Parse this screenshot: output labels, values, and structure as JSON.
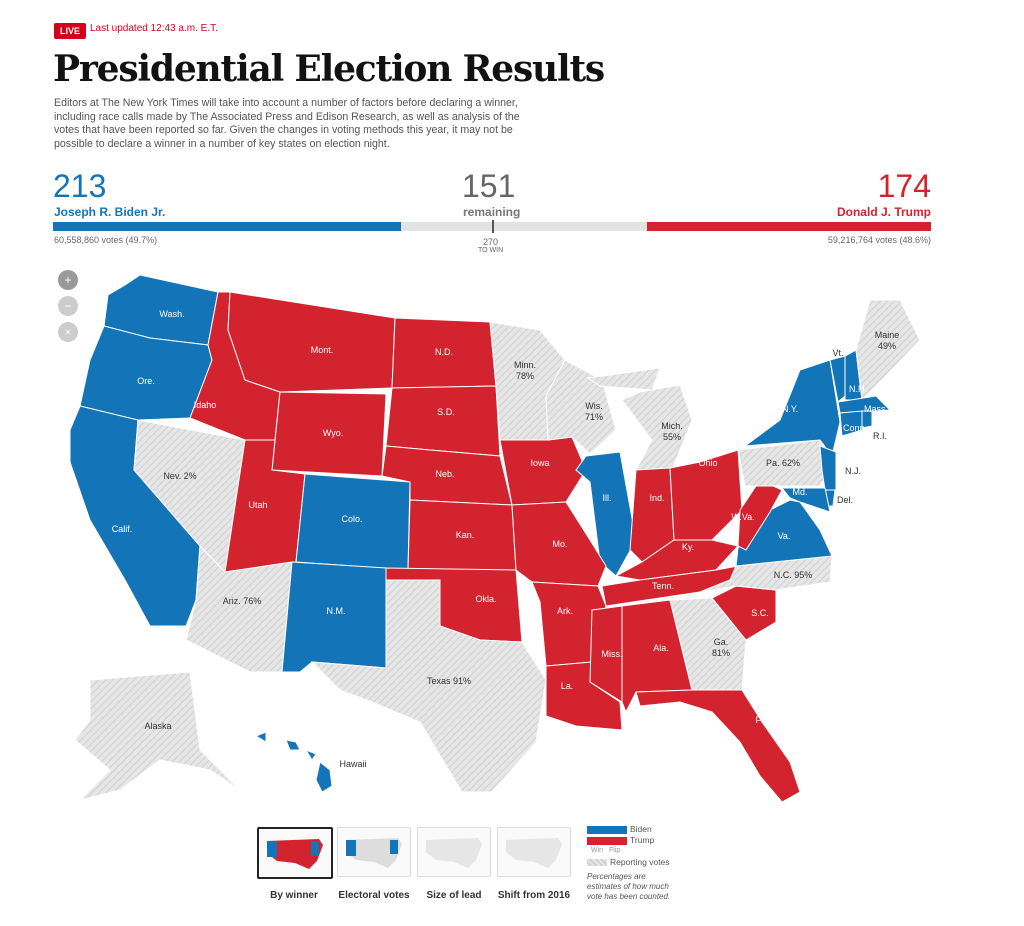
{
  "header": {
    "live_badge": "LIVE",
    "updated": "Last updated 12:43 a.m. E.T.",
    "title": "Presidential Election Results",
    "intro": "Editors at The New York Times will take into account a number of factors before declaring a winner, including race calls made by The Associated Press and Edison Research, as well as analysis of the votes that have been reported so far. Given the changes in voting methods this year, it may not be possible to declare a winner in a number of key states on election night."
  },
  "tally": {
    "biden": {
      "electoral": "213",
      "name": "Joseph R. Biden Jr.",
      "votes": "60,558,860 votes (49.7%)",
      "ev_value": 213
    },
    "remaining": {
      "count": "151",
      "label": "remaining",
      "ev_value": 151
    },
    "trump": {
      "electoral": "174",
      "name": "Donald J. Trump",
      "votes": "59,216,764 votes (48.6%)",
      "ev_value": 174
    },
    "to_win": {
      "number": "270",
      "label": "TO WIN"
    }
  },
  "colors": {
    "biden": "#1375b7",
    "trump": "#d2232f",
    "reporting": "#e3e3e3"
  },
  "zoom_controls": [
    "zoom-in-icon",
    "zoom-out-icon",
    "reset-icon"
  ],
  "states": [
    {
      "id": "wa",
      "label": "Wash.",
      "status": "biden"
    },
    {
      "id": "or",
      "label": "Ore.",
      "status": "biden"
    },
    {
      "id": "ca",
      "label": "Calif.",
      "status": "biden"
    },
    {
      "id": "nv",
      "label": "Nev.",
      "pct": "2%",
      "status": "reporting"
    },
    {
      "id": "id",
      "label": "Idaho",
      "status": "trump"
    },
    {
      "id": "mt",
      "label": "Mont.",
      "status": "trump"
    },
    {
      "id": "wy",
      "label": "Wyo.",
      "status": "trump"
    },
    {
      "id": "ut",
      "label": "Utah",
      "status": "trump"
    },
    {
      "id": "co",
      "label": "Colo.",
      "status": "biden"
    },
    {
      "id": "az",
      "label": "Ariz.",
      "pct": "76%",
      "status": "reporting"
    },
    {
      "id": "nm",
      "label": "N.M.",
      "status": "biden"
    },
    {
      "id": "nd",
      "label": "N.D.",
      "status": "trump"
    },
    {
      "id": "sd",
      "label": "S.D.",
      "status": "trump"
    },
    {
      "id": "ne",
      "label": "Neb.",
      "status": "trump"
    },
    {
      "id": "ks",
      "label": "Kan.",
      "status": "trump"
    },
    {
      "id": "ok",
      "label": "Okla.",
      "status": "trump"
    },
    {
      "id": "tx",
      "label": "Texas",
      "pct": "91%",
      "status": "reporting"
    },
    {
      "id": "mn",
      "label": "Minn.",
      "pct": "78%",
      "status": "reporting"
    },
    {
      "id": "ia",
      "label": "Iowa",
      "status": "trump"
    },
    {
      "id": "wi",
      "label": "Wis.",
      "pct": "71%",
      "status": "reporting"
    },
    {
      "id": "il",
      "label": "Ill.",
      "status": "biden"
    },
    {
      "id": "mo",
      "label": "Mo.",
      "status": "trump"
    },
    {
      "id": "mi",
      "label": "Mich.",
      "pct": "55%",
      "status": "reporting"
    },
    {
      "id": "in",
      "label": "Ind.",
      "status": "trump"
    },
    {
      "id": "oh",
      "label": "Ohio",
      "status": "trump"
    },
    {
      "id": "ky",
      "label": "Ky.",
      "status": "trump"
    },
    {
      "id": "tn",
      "label": "Tenn.",
      "status": "trump"
    },
    {
      "id": "ar",
      "label": "Ark.",
      "status": "trump"
    },
    {
      "id": "la",
      "label": "La.",
      "status": "trump"
    },
    {
      "id": "ms",
      "label": "Miss.",
      "status": "trump"
    },
    {
      "id": "al",
      "label": "Ala.",
      "status": "trump"
    },
    {
      "id": "ga",
      "label": "Ga.",
      "pct": "81%",
      "status": "reporting"
    },
    {
      "id": "fl",
      "label": "Fla.",
      "status": "trump"
    },
    {
      "id": "sc",
      "label": "S.C.",
      "status": "trump"
    },
    {
      "id": "nc",
      "label": "N.C.",
      "pct": "95%",
      "status": "reporting"
    },
    {
      "id": "va",
      "label": "Va.",
      "status": "biden"
    },
    {
      "id": "wv",
      "label": "W.Va.",
      "status": "trump"
    },
    {
      "id": "pa",
      "label": "Pa.",
      "pct": "62%",
      "status": "reporting"
    },
    {
      "id": "ny",
      "label": "N.Y.",
      "status": "biden"
    },
    {
      "id": "nj",
      "label": "N.J.",
      "status": "biden"
    },
    {
      "id": "de",
      "label": "Del.",
      "status": "biden"
    },
    {
      "id": "md",
      "label": "Md.",
      "status": "biden"
    },
    {
      "id": "vt",
      "label": "Vt.",
      "status": "biden"
    },
    {
      "id": "nh",
      "label": "N.H.",
      "status": "biden"
    },
    {
      "id": "me",
      "label": "Maine",
      "pct": "49%",
      "status": "reporting"
    },
    {
      "id": "ma",
      "label": "Mass.",
      "status": "biden"
    },
    {
      "id": "ct",
      "label": "Conn.",
      "status": "biden"
    },
    {
      "id": "ri",
      "label": "R.I.",
      "status": "biden"
    },
    {
      "id": "ak",
      "label": "Alaska",
      "status": "reporting"
    },
    {
      "id": "hi",
      "label": "Hawaii",
      "status": "biden"
    }
  ],
  "views": [
    {
      "label": "By winner",
      "selected": true
    },
    {
      "label": "Electoral votes"
    },
    {
      "label": "Size of lead"
    },
    {
      "label": "Shift from 2016"
    }
  ],
  "legend": {
    "biden": "Biden",
    "trump": "Trump",
    "win": "Win",
    "flip": "Flip",
    "reporting": "Reporting votes",
    "note": "Percentages are estimates of how much vote has been counted."
  }
}
